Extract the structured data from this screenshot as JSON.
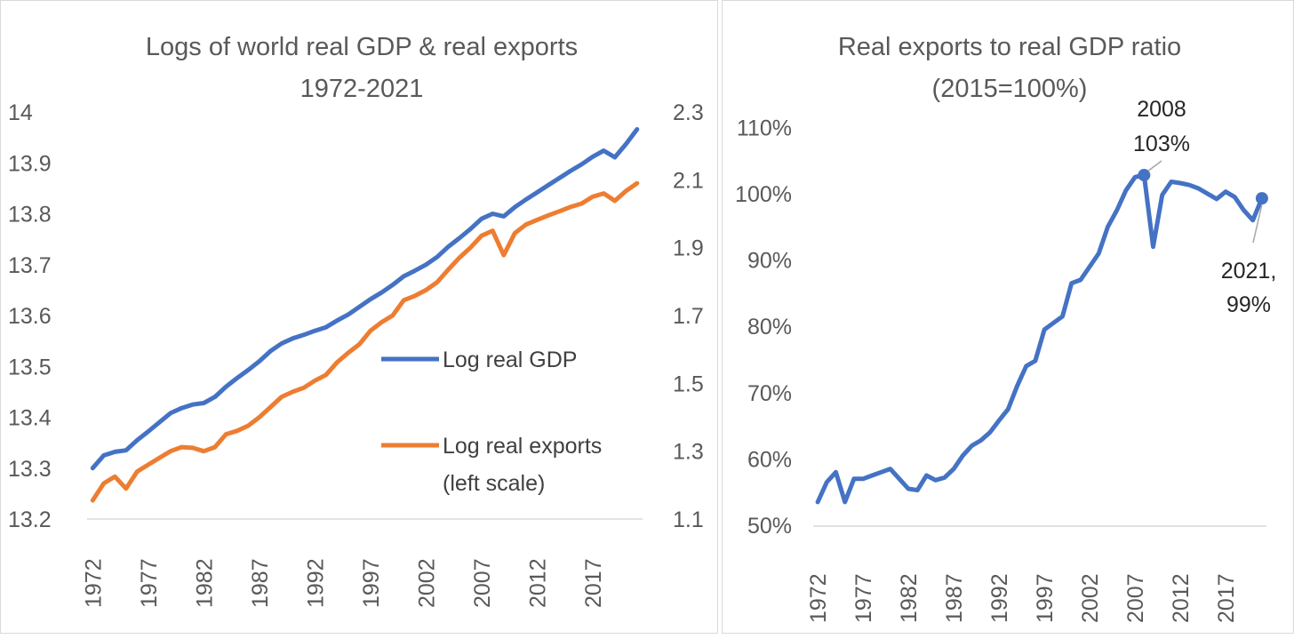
{
  "chart_data": [
    {
      "type": "line",
      "title": "Logs of world real GDP & real exports",
      "subtitle": "1972-2021",
      "x": [
        1972,
        1973,
        1974,
        1975,
        1976,
        1977,
        1978,
        1979,
        1980,
        1981,
        1982,
        1983,
        1984,
        1985,
        1986,
        1987,
        1988,
        1989,
        1990,
        1991,
        1992,
        1993,
        1994,
        1995,
        1996,
        1997,
        1998,
        1999,
        2000,
        2001,
        2002,
        2003,
        2004,
        2005,
        2006,
        2007,
        2008,
        2009,
        2010,
        2011,
        2012,
        2013,
        2014,
        2015,
        2016,
        2017,
        2018,
        2019,
        2020,
        2021
      ],
      "x_tick_labels": [
        "1972",
        "1977",
        "1982",
        "1987",
        "1992",
        "1997",
        "2002",
        "2007",
        "2012",
        "2017"
      ],
      "left_axis": {
        "ylim": [
          13.2,
          14.0
        ],
        "ticks": [
          "13.2",
          "13.3",
          "13.4",
          "13.5",
          "13.6",
          "13.7",
          "13.8",
          "13.9",
          "14"
        ]
      },
      "right_axis": {
        "ylim": [
          1.1,
          2.3
        ],
        "ticks": [
          "1.1",
          "1.3",
          "1.5",
          "1.7",
          "1.9",
          "2.1",
          "2.3"
        ]
      },
      "series": [
        {
          "name": "Log real GDP",
          "axis": "left",
          "color": "#4472C4",
          "values": [
            13.3,
            13.325,
            13.332,
            13.335,
            13.355,
            13.372,
            13.39,
            13.408,
            13.418,
            13.425,
            13.428,
            13.44,
            13.46,
            13.477,
            13.493,
            13.51,
            13.53,
            13.545,
            13.555,
            13.562,
            13.57,
            13.577,
            13.59,
            13.602,
            13.617,
            13.632,
            13.645,
            13.66,
            13.677,
            13.688,
            13.7,
            13.715,
            13.735,
            13.752,
            13.77,
            13.79,
            13.8,
            13.795,
            13.813,
            13.828,
            13.842,
            13.856,
            13.87,
            13.884,
            13.897,
            13.912,
            13.924,
            13.911,
            13.937,
            13.966
          ]
        },
        {
          "name": "Log real exports",
          "name_line2": "(left scale)",
          "axis": "right",
          "color": "#ED7D31",
          "values": [
            1.155,
            1.205,
            1.225,
            1.19,
            1.24,
            1.26,
            1.28,
            1.3,
            1.312,
            1.31,
            1.3,
            1.312,
            1.35,
            1.36,
            1.375,
            1.4,
            1.43,
            1.46,
            1.475,
            1.487,
            1.508,
            1.525,
            1.562,
            1.59,
            1.615,
            1.655,
            1.68,
            1.7,
            1.745,
            1.758,
            1.775,
            1.798,
            1.835,
            1.87,
            1.9,
            1.935,
            1.95,
            1.878,
            1.943,
            1.968,
            1.982,
            1.995,
            2.007,
            2.02,
            2.03,
            2.05,
            2.06,
            2.038,
            2.067,
            2.09
          ]
        }
      ]
    },
    {
      "type": "line",
      "title": "Real exports to real GDP ratio",
      "subtitle": "(2015=100%)",
      "x": [
        1972,
        1973,
        1974,
        1975,
        1976,
        1977,
        1978,
        1979,
        1980,
        1981,
        1982,
        1983,
        1984,
        1985,
        1986,
        1987,
        1988,
        1989,
        1990,
        1991,
        1992,
        1993,
        1994,
        1995,
        1996,
        1997,
        1998,
        1999,
        2000,
        2001,
        2002,
        2003,
        2004,
        2005,
        2006,
        2007,
        2008,
        2009,
        2010,
        2011,
        2012,
        2013,
        2014,
        2015,
        2016,
        2017,
        2018,
        2019,
        2020,
        2021
      ],
      "x_tick_labels": [
        "1972",
        "1977",
        "1982",
        "1987",
        "1992",
        "1997",
        "2002",
        "2007",
        "2012",
        "2017"
      ],
      "ylim": [
        50,
        115
      ],
      "y_ticks": [
        "50%",
        "60%",
        "70%",
        "80%",
        "90%",
        "100%",
        "110%"
      ],
      "series": [
        {
          "name": "Real exports to real GDP ratio",
          "color": "#4472C4",
          "values": [
            53.5,
            56.5,
            58.0,
            53.5,
            57.0,
            57.0,
            57.5,
            58.0,
            58.5,
            57.0,
            55.5,
            55.3,
            57.5,
            56.8,
            57.2,
            58.5,
            60.5,
            62.0,
            62.8,
            64.0,
            65.8,
            67.5,
            71.0,
            74.0,
            74.8,
            79.5,
            80.5,
            81.5,
            86.5,
            87.0,
            89.0,
            91.0,
            95.0,
            97.5,
            100.5,
            102.5,
            102.8,
            92.0,
            99.8,
            101.8,
            101.6,
            101.3,
            100.8,
            100.0,
            99.2,
            100.3,
            99.5,
            97.5,
            96.0,
            99.3
          ]
        }
      ],
      "annotations": [
        {
          "label_line1": "2008",
          "label_line2": "103%"
        },
        {
          "label_line1": "2021,",
          "label_line2": "99%"
        }
      ]
    }
  ]
}
